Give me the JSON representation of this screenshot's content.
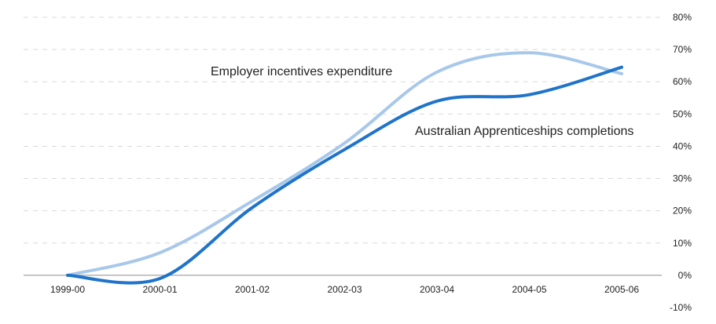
{
  "chart_data": {
    "type": "line",
    "title": "",
    "xlabel": "",
    "ylabel": "",
    "categories": [
      "1999-00",
      "2000-01",
      "2001-02",
      "2002-03",
      "2003-04",
      "2004-05",
      "2005-06"
    ],
    "ylim": [
      -10,
      80
    ],
    "yticks": [
      -10,
      0,
      10,
      20,
      30,
      40,
      50,
      60,
      70,
      80
    ],
    "ytick_labels": [
      "-10%",
      "0%",
      "10%",
      "20%",
      "30%",
      "40%",
      "50%",
      "60%",
      "70%",
      "80%"
    ],
    "y_axis_position": "right",
    "grid": true,
    "legend": "none (series labelled inline)",
    "series": [
      {
        "name": "Employer incentives expenditure",
        "color": "#a8c8ea",
        "values": [
          0,
          7,
          23,
          41,
          63,
          69,
          62.5
        ]
      },
      {
        "name": "Australian Apprenticeships completions",
        "color": "#1f74c9",
        "values": [
          0,
          -1,
          21,
          39,
          54,
          56,
          64.5
        ]
      }
    ]
  }
}
